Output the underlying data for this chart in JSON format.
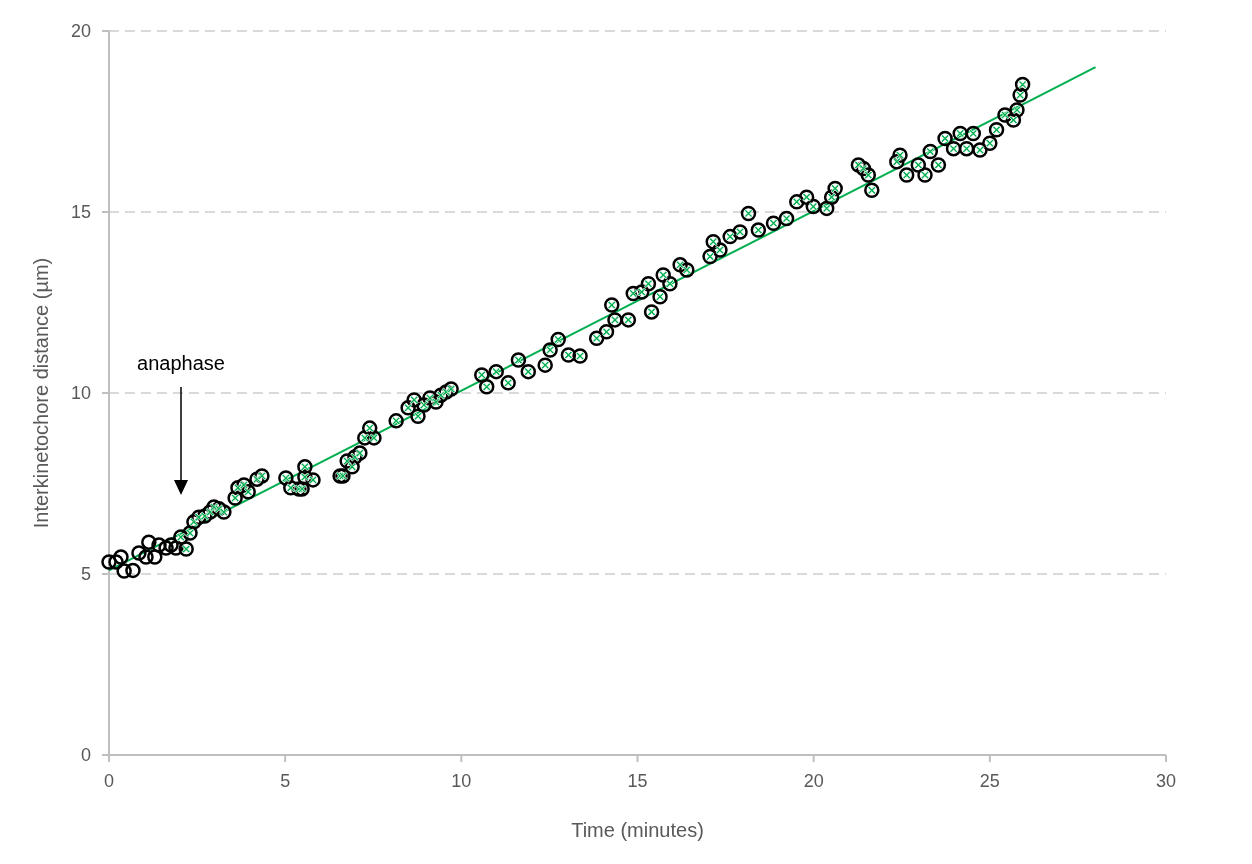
{
  "chart_data": {
    "type": "scatter",
    "xlabel": "Time (minutes)",
    "ylabel": "Interkinetochore distance (µm)",
    "xlim": [
      0,
      30
    ],
    "xticks": [
      0,
      5,
      10,
      15,
      20,
      25,
      30
    ],
    "ylim": [
      0,
      20
    ],
    "yticks": [
      0,
      5,
      10,
      15,
      20
    ],
    "grid": "y",
    "annotations": [
      "anaphase"
    ],
    "series": [
      {
        "color": "#000000",
        "marker": "circle",
        "x": [
          0,
          0.2,
          0.34,
          0.43,
          0.68,
          0.85,
          1.05,
          1.13,
          1.3,
          1.42,
          1.62,
          1.76,
          1.9,
          2.04,
          2.19,
          2.3,
          2.41,
          2.55,
          2.72,
          2.87,
          2.98,
          3.12,
          3.26,
          3.58,
          3.66,
          3.83,
          3.95,
          4.2,
          4.34,
          5.02,
          5.16,
          5.39,
          5.48,
          5.56,
          5.56,
          5.79,
          6.56,
          6.64,
          6.76,
          6.9,
          6.98,
          7.12,
          7.26,
          7.4,
          7.52,
          8.15,
          8.49,
          8.66,
          8.77,
          8.94,
          9.11,
          9.28,
          9.42,
          9.57,
          9.71,
          10.58,
          10.72,
          10.99,
          11.33,
          11.62,
          11.9,
          12.38,
          12.52,
          12.75,
          13.04,
          13.37,
          13.84,
          14.12,
          14.27,
          14.36,
          14.74,
          14.88,
          15.12,
          15.31,
          15.4,
          15.64,
          15.73,
          15.92,
          16.21,
          16.4,
          17.06,
          17.15,
          17.34,
          17.63,
          17.91,
          18.15,
          18.43,
          18.86,
          19.23,
          19.52,
          19.8,
          19.99,
          20.37,
          20.51,
          20.61,
          21.27,
          21.41,
          21.55,
          21.65,
          22.36,
          22.45,
          22.64,
          22.97,
          23.16,
          23.31,
          23.54,
          23.73,
          23.97,
          24.16,
          24.34,
          24.53,
          24.72,
          25.0,
          25.19,
          25.43,
          25.67,
          25.77,
          25.86,
          25.93
        ],
        "values": [
          5.33,
          5.33,
          5.47,
          5.08,
          5.1,
          5.58,
          5.47,
          5.88,
          5.47,
          5.8,
          5.72,
          5.8,
          5.72,
          6.02,
          5.69,
          6.13,
          6.44,
          6.57,
          6.6,
          6.71,
          6.85,
          6.8,
          6.71,
          7.1,
          7.38,
          7.46,
          7.27,
          7.62,
          7.71,
          7.65,
          7.38,
          7.35,
          7.35,
          7.68,
          7.96,
          7.6,
          7.71,
          7.71,
          8.12,
          7.96,
          8.23,
          8.34,
          8.76,
          9.03,
          8.76,
          9.23,
          9.59,
          9.81,
          9.36,
          9.67,
          9.86,
          9.75,
          9.94,
          10.03,
          10.11,
          10.5,
          10.17,
          10.59,
          10.28,
          10.91,
          10.59,
          10.77,
          11.19,
          11.48,
          11.05,
          11.02,
          11.51,
          11.69,
          12.43,
          12.02,
          12.02,
          12.75,
          12.79,
          13.02,
          12.24,
          12.66,
          13.26,
          13.02,
          13.54,
          13.4,
          13.77,
          14.18,
          13.95,
          14.32,
          14.45,
          14.96,
          14.5,
          14.69,
          14.82,
          15.28,
          15.41,
          15.15,
          15.1,
          15.41,
          15.65,
          16.3,
          16.2,
          16.02,
          15.6,
          16.39,
          16.57,
          16.02,
          16.3,
          16.02,
          16.67,
          16.3,
          17.03,
          16.75,
          17.17,
          16.75,
          17.17,
          16.71,
          16.9,
          17.27,
          17.68,
          17.54,
          17.82,
          18.23,
          18.52
        ]
      },
      {
        "color": "#00b050",
        "marker": "cross",
        "x": [
          2.04,
          2.19,
          2.3,
          2.41,
          2.55,
          2.72,
          2.87,
          2.98,
          3.12,
          3.26,
          3.58,
          3.66,
          3.83,
          3.95,
          4.2,
          4.34,
          5.02,
          5.16,
          5.39,
          5.48,
          5.56,
          5.56,
          5.79,
          6.56,
          6.64,
          6.76,
          6.9,
          6.98,
          7.12,
          7.26,
          7.4,
          7.52,
          8.15,
          8.49,
          8.66,
          8.77,
          8.94,
          9.11,
          9.28,
          9.42,
          9.57,
          9.71,
          10.58,
          10.72,
          10.99,
          11.33,
          11.62,
          11.9,
          12.38,
          12.52,
          12.75,
          13.04,
          13.37,
          13.84,
          14.12,
          14.27,
          14.36,
          14.74,
          14.88,
          15.12,
          15.31,
          15.4,
          15.64,
          15.73,
          15.92,
          16.21,
          16.4,
          17.06,
          17.15,
          17.34,
          17.63,
          17.91,
          18.15,
          18.43,
          18.86,
          19.23,
          19.52,
          19.8,
          19.99,
          20.37,
          20.51,
          20.61,
          21.27,
          21.41,
          21.55,
          21.65,
          22.36,
          22.45,
          22.64,
          22.97,
          23.16,
          23.31,
          23.54,
          23.73,
          23.97,
          24.16,
          24.34,
          24.53,
          24.72,
          25.0,
          25.19,
          25.43,
          25.67,
          25.77,
          25.86,
          25.93
        ],
        "values": [
          6.02,
          5.69,
          6.13,
          6.44,
          6.57,
          6.6,
          6.71,
          6.85,
          6.8,
          6.71,
          7.1,
          7.38,
          7.46,
          7.27,
          7.62,
          7.71,
          7.65,
          7.38,
          7.35,
          7.35,
          7.68,
          7.96,
          7.6,
          7.71,
          7.71,
          8.12,
          7.96,
          8.23,
          8.34,
          8.76,
          9.03,
          8.76,
          9.23,
          9.59,
          9.81,
          9.36,
          9.67,
          9.86,
          9.75,
          9.94,
          10.03,
          10.11,
          10.5,
          10.17,
          10.59,
          10.28,
          10.91,
          10.59,
          10.77,
          11.19,
          11.48,
          11.05,
          11.02,
          11.51,
          11.69,
          12.43,
          12.02,
          12.02,
          12.75,
          12.79,
          13.02,
          12.24,
          12.66,
          13.26,
          13.02,
          13.54,
          13.4,
          13.77,
          14.18,
          13.95,
          14.32,
          14.45,
          14.96,
          14.5,
          14.69,
          14.82,
          15.28,
          15.41,
          15.15,
          15.1,
          15.41,
          15.65,
          16.3,
          16.2,
          16.02,
          15.6,
          16.39,
          16.57,
          16.02,
          16.3,
          16.02,
          16.67,
          16.3,
          17.03,
          16.75,
          17.17,
          16.75,
          17.17,
          16.71,
          16.9,
          17.27,
          17.68,
          17.54,
          17.82,
          18.23,
          18.52
        ]
      },
      {
        "type": "line",
        "color": "#00b050",
        "marker": "none",
        "x": [
          0,
          28
        ],
        "values": [
          5.1,
          19.0
        ]
      }
    ]
  }
}
